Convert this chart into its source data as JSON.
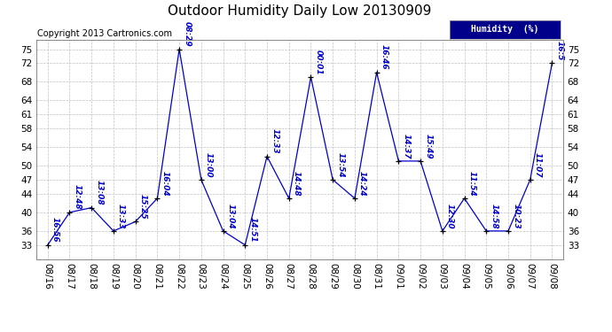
{
  "title": "Outdoor Humidity Daily Low 20130909",
  "copyright": "Copyright 2013 Cartronics.com",
  "legend_label": "Humidity  (%)",
  "x_labels": [
    "08/16",
    "08/17",
    "08/18",
    "08/19",
    "08/20",
    "08/21",
    "08/22",
    "08/23",
    "08/24",
    "08/25",
    "08/26",
    "08/27",
    "08/28",
    "08/29",
    "08/30",
    "08/31",
    "09/01",
    "09/02",
    "09/03",
    "09/04",
    "09/05",
    "09/06",
    "09/07",
    "09/08"
  ],
  "y_values": [
    33,
    40,
    41,
    36,
    38,
    43,
    75,
    47,
    36,
    33,
    52,
    43,
    69,
    47,
    43,
    70,
    51,
    51,
    36,
    43,
    36,
    36,
    47,
    72
  ],
  "point_labels": [
    "16:56",
    "12:48",
    "13:08",
    "13:33",
    "15:25",
    "16:04",
    "08:29",
    "13:00",
    "13:04",
    "14:51",
    "12:33",
    "14:48",
    "00:01",
    "13:54",
    "14:24",
    "16:46",
    "14:37",
    "15:49",
    "12:30",
    "11:54",
    "14:58",
    "10:23",
    "11:07",
    "16:5"
  ],
  "y_ticks": [
    33,
    36,
    40,
    44,
    47,
    50,
    54,
    58,
    61,
    64,
    68,
    72,
    75
  ],
  "ylim": [
    30,
    77
  ],
  "xlim": [
    -0.5,
    23.5
  ],
  "line_color": "#0000cd",
  "marker_color": "#000000",
  "bg_color": "#ffffff",
  "grid_color": "#c0c0c0",
  "title_color": "#000000",
  "label_color": "#0000cd",
  "legend_bg": "#00008b",
  "legend_text_color": "#ffffff",
  "title_fontsize": 11,
  "tick_fontsize": 7.5,
  "label_fontsize": 6.5,
  "copyright_fontsize": 7
}
